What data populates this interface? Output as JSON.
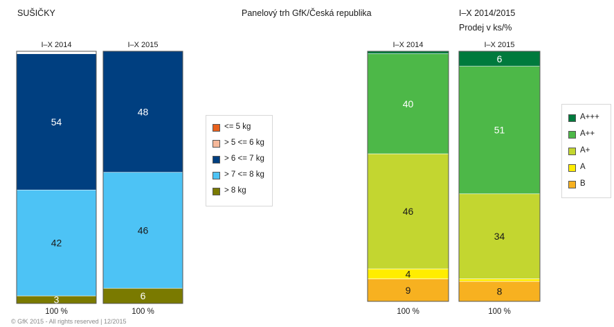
{
  "header": {
    "left": "SUŠIČKY",
    "center": "Panelový trh GfK/Česká republika",
    "right": "I–X 2014/2015",
    "right_sub": "Prodej v ks/%"
  },
  "footer": "© GfK 2015 - All rights reserved | 12/2015",
  "colors": {
    "w_le5": "#e8601c",
    "w_5_6": "#f5b89a",
    "w_6_7": "#003f80",
    "w_7_8": "#4dc3f5",
    "w_gt8": "#7a7a00",
    "e_app": "#007a3d",
    "e_ap": "#4db848",
    "e_a_plus": "#c3d630",
    "e_a": "#ffed00",
    "e_b": "#f7b120"
  },
  "chart_data": [
    {
      "type": "bar",
      "stacked": true,
      "categories": [
        "I–X 2014",
        "I–X 2015"
      ],
      "totals": [
        "100 %",
        "100 %"
      ],
      "ylim": [
        0,
        100
      ],
      "legend_position": "right",
      "series": [
        {
          "name": "<= 5 kg",
          "color_key": "w_le5",
          "values": [
            0,
            0
          ]
        },
        {
          "name": "> 5 <= 6 kg",
          "color_key": "w_5_6",
          "values": [
            0,
            0
          ]
        },
        {
          "name": "> 6 <= 7 kg",
          "color_key": "w_6_7",
          "values": [
            54,
            48
          ]
        },
        {
          "name": "> 7 <= 8 kg",
          "color_key": "w_7_8",
          "values": [
            42,
            46
          ]
        },
        {
          "name": "> 8 kg",
          "color_key": "w_gt8",
          "values": [
            3,
            6
          ]
        }
      ]
    },
    {
      "type": "bar",
      "stacked": true,
      "categories": [
        "I–X 2014",
        "I–X 2015"
      ],
      "totals": [
        "100 %",
        "100 %"
      ],
      "ylim": [
        0,
        100
      ],
      "legend_position": "right",
      "series": [
        {
          "name": "A+++",
          "color_key": "e_app",
          "values": [
            1,
            6
          ]
        },
        {
          "name": "A++",
          "color_key": "e_ap",
          "values": [
            40,
            51
          ]
        },
        {
          "name": "A+",
          "color_key": "e_a_plus",
          "values": [
            46,
            34
          ]
        },
        {
          "name": "A",
          "color_key": "e_a",
          "values": [
            4,
            1
          ]
        },
        {
          "name": "B",
          "color_key": "e_b",
          "values": [
            9,
            8
          ]
        }
      ]
    }
  ]
}
